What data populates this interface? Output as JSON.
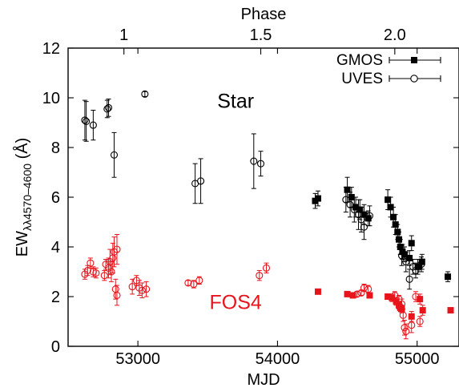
{
  "chart_data": {
    "type": "scatter",
    "xlabel": "MJD",
    "ylabel_main": "EW",
    "ylabel_sub": "λλ4570–4600",
    "ylabel_unit": " (Å)",
    "top_xlabel": "Phase",
    "xlim": [
      52500,
      55300
    ],
    "ylim": [
      0,
      12
    ],
    "x_ticks": [
      53000,
      54000,
      55000
    ],
    "y_ticks": [
      0,
      2,
      4,
      6,
      8,
      10,
      12
    ],
    "top_ticks": [
      {
        "label": "1",
        "mjd": 52900
      },
      {
        "label": "1.5",
        "mjd": 53880
      },
      {
        "label": "2.0",
        "mjd": 54840
      }
    ],
    "annotations": [
      {
        "text": "Star",
        "x": 53700,
        "y": 9.6,
        "color": "#000000"
      },
      {
        "text": "FOS4",
        "x": 53700,
        "y": 1.5,
        "color": "#e8141c"
      }
    ],
    "legend": {
      "position": "top-right",
      "entries": [
        "GMOS",
        "UVES"
      ]
    },
    "series": [
      {
        "name": "GMOS",
        "group": "star",
        "marker": "square",
        "color": "#000000",
        "points": [
          [
            54270,
            5.85,
            0.3
          ],
          [
            54290,
            5.95,
            0.3
          ],
          [
            54500,
            6.3,
            0.5
          ],
          [
            54530,
            6.0,
            0.4
          ],
          [
            54560,
            5.6,
            0.4
          ],
          [
            54590,
            5.5,
            0.4
          ],
          [
            54620,
            5.3,
            0.4
          ],
          [
            54650,
            5.15,
            0.3
          ],
          [
            54790,
            5.9,
            0.4
          ],
          [
            54810,
            5.6,
            0.4
          ],
          [
            54830,
            5.2,
            0.4
          ],
          [
            54845,
            4.9,
            0.4
          ],
          [
            54860,
            4.6,
            0.3
          ],
          [
            54870,
            4.3,
            0.3
          ],
          [
            54880,
            4.0,
            0.3
          ],
          [
            54895,
            3.8,
            0.3
          ],
          [
            54910,
            3.7,
            0.3
          ],
          [
            54945,
            3.55,
            0.3
          ],
          [
            54960,
            4.15,
            0.3
          ],
          [
            55005,
            3.2,
            0.3
          ],
          [
            55035,
            3.4,
            0.3
          ],
          [
            55220,
            2.8,
            0.2
          ]
        ]
      },
      {
        "name": "UVES",
        "group": "star",
        "marker": "circle",
        "color": "#000000",
        "points": [
          [
            52620,
            9.1,
            0.8
          ],
          [
            52630,
            9.05,
            0.8
          ],
          [
            52680,
            8.9,
            0.6
          ],
          [
            52780,
            9.55,
            0.35
          ],
          [
            52790,
            9.6,
            0.35
          ],
          [
            52830,
            7.7,
            0.9
          ],
          [
            53050,
            10.15,
            0.1
          ],
          [
            53410,
            6.55,
            0.8
          ],
          [
            53450,
            6.65,
            0.9
          ],
          [
            53830,
            7.45,
            1.1
          ],
          [
            53880,
            7.35,
            0.5
          ],
          [
            54490,
            5.9,
            0.5
          ],
          [
            54520,
            5.7,
            0.5
          ],
          [
            54550,
            5.5,
            0.5
          ],
          [
            54580,
            5.3,
            0.6
          ],
          [
            54600,
            5.1,
            0.5
          ],
          [
            54620,
            4.8,
            0.5
          ],
          [
            54660,
            5.25,
            0.4
          ],
          [
            54890,
            3.65,
            0.4
          ],
          [
            54920,
            3.4,
            0.4
          ],
          [
            54945,
            2.7,
            0.4
          ],
          [
            54970,
            3.2,
            0.3
          ],
          [
            54990,
            3.05,
            0.3
          ],
          [
            55030,
            3.3,
            0.3
          ]
        ]
      },
      {
        "name": "",
        "group": "fos4",
        "marker": "circle",
        "color": "#e8141c",
        "points": [
          [
            52620,
            2.9,
            0.2
          ],
          [
            52640,
            3.05,
            0.2
          ],
          [
            52660,
            3.35,
            0.2
          ],
          [
            52680,
            3.0,
            0.2
          ],
          [
            52700,
            2.95,
            0.2
          ],
          [
            52760,
            2.85,
            0.2
          ],
          [
            52770,
            3.3,
            0.2
          ],
          [
            52790,
            3.15,
            0.4
          ],
          [
            52800,
            3.4,
            0.5
          ],
          [
            52810,
            3.0,
            0.4
          ],
          [
            52820,
            3.55,
            0.6
          ],
          [
            52830,
            3.8,
            0.6
          ],
          [
            52840,
            2.3,
            0.4
          ],
          [
            52850,
            2.05,
            0.4
          ],
          [
            52850,
            3.9,
            0.6
          ],
          [
            52960,
            2.4,
            0.3
          ],
          [
            52990,
            2.65,
            0.2
          ],
          [
            53010,
            2.35,
            0.3
          ],
          [
            53030,
            2.25,
            0.3
          ],
          [
            53060,
            2.3,
            0.3
          ],
          [
            53360,
            2.55,
            0.1
          ],
          [
            53400,
            2.5,
            0.15
          ],
          [
            53440,
            2.65,
            0.15
          ],
          [
            53870,
            2.85,
            0.2
          ],
          [
            53920,
            3.15,
            0.2
          ],
          [
            54570,
            2.1,
            0.1
          ],
          [
            54600,
            2.15,
            0.1
          ],
          [
            54620,
            2.35,
            0.15
          ],
          [
            54650,
            2.3,
            0.15
          ],
          [
            54840,
            2.05,
            0.15
          ],
          [
            54870,
            1.9,
            0.15
          ],
          [
            54890,
            1.7,
            0.2
          ],
          [
            54900,
            1.25,
            0.25
          ],
          [
            54910,
            0.75,
            0.3
          ],
          [
            54920,
            0.6,
            0.3
          ],
          [
            54960,
            0.85,
            0.3
          ],
          [
            54990,
            2.0,
            0.2
          ],
          [
            55020,
            1.0,
            0.2
          ]
        ]
      },
      {
        "name": "",
        "group": "fos4",
        "marker": "square",
        "color": "#e8141c",
        "points": [
          [
            54290,
            2.2,
            0.1
          ],
          [
            54500,
            2.1,
            0.1
          ],
          [
            54540,
            2.05,
            0.1
          ],
          [
            54660,
            2.05,
            0.1
          ],
          [
            54790,
            2.0,
            0.1
          ],
          [
            54820,
            1.95,
            0.15
          ],
          [
            54850,
            1.8,
            0.15
          ],
          [
            54870,
            1.65,
            0.15
          ],
          [
            54880,
            1.55,
            0.15
          ],
          [
            54890,
            1.5,
            0.15
          ],
          [
            54960,
            1.2,
            0.2
          ],
          [
            55020,
            1.9,
            0.2
          ],
          [
            55040,
            1.45,
            0.2
          ],
          [
            55240,
            1.45,
            0.1
          ]
        ]
      }
    ]
  }
}
